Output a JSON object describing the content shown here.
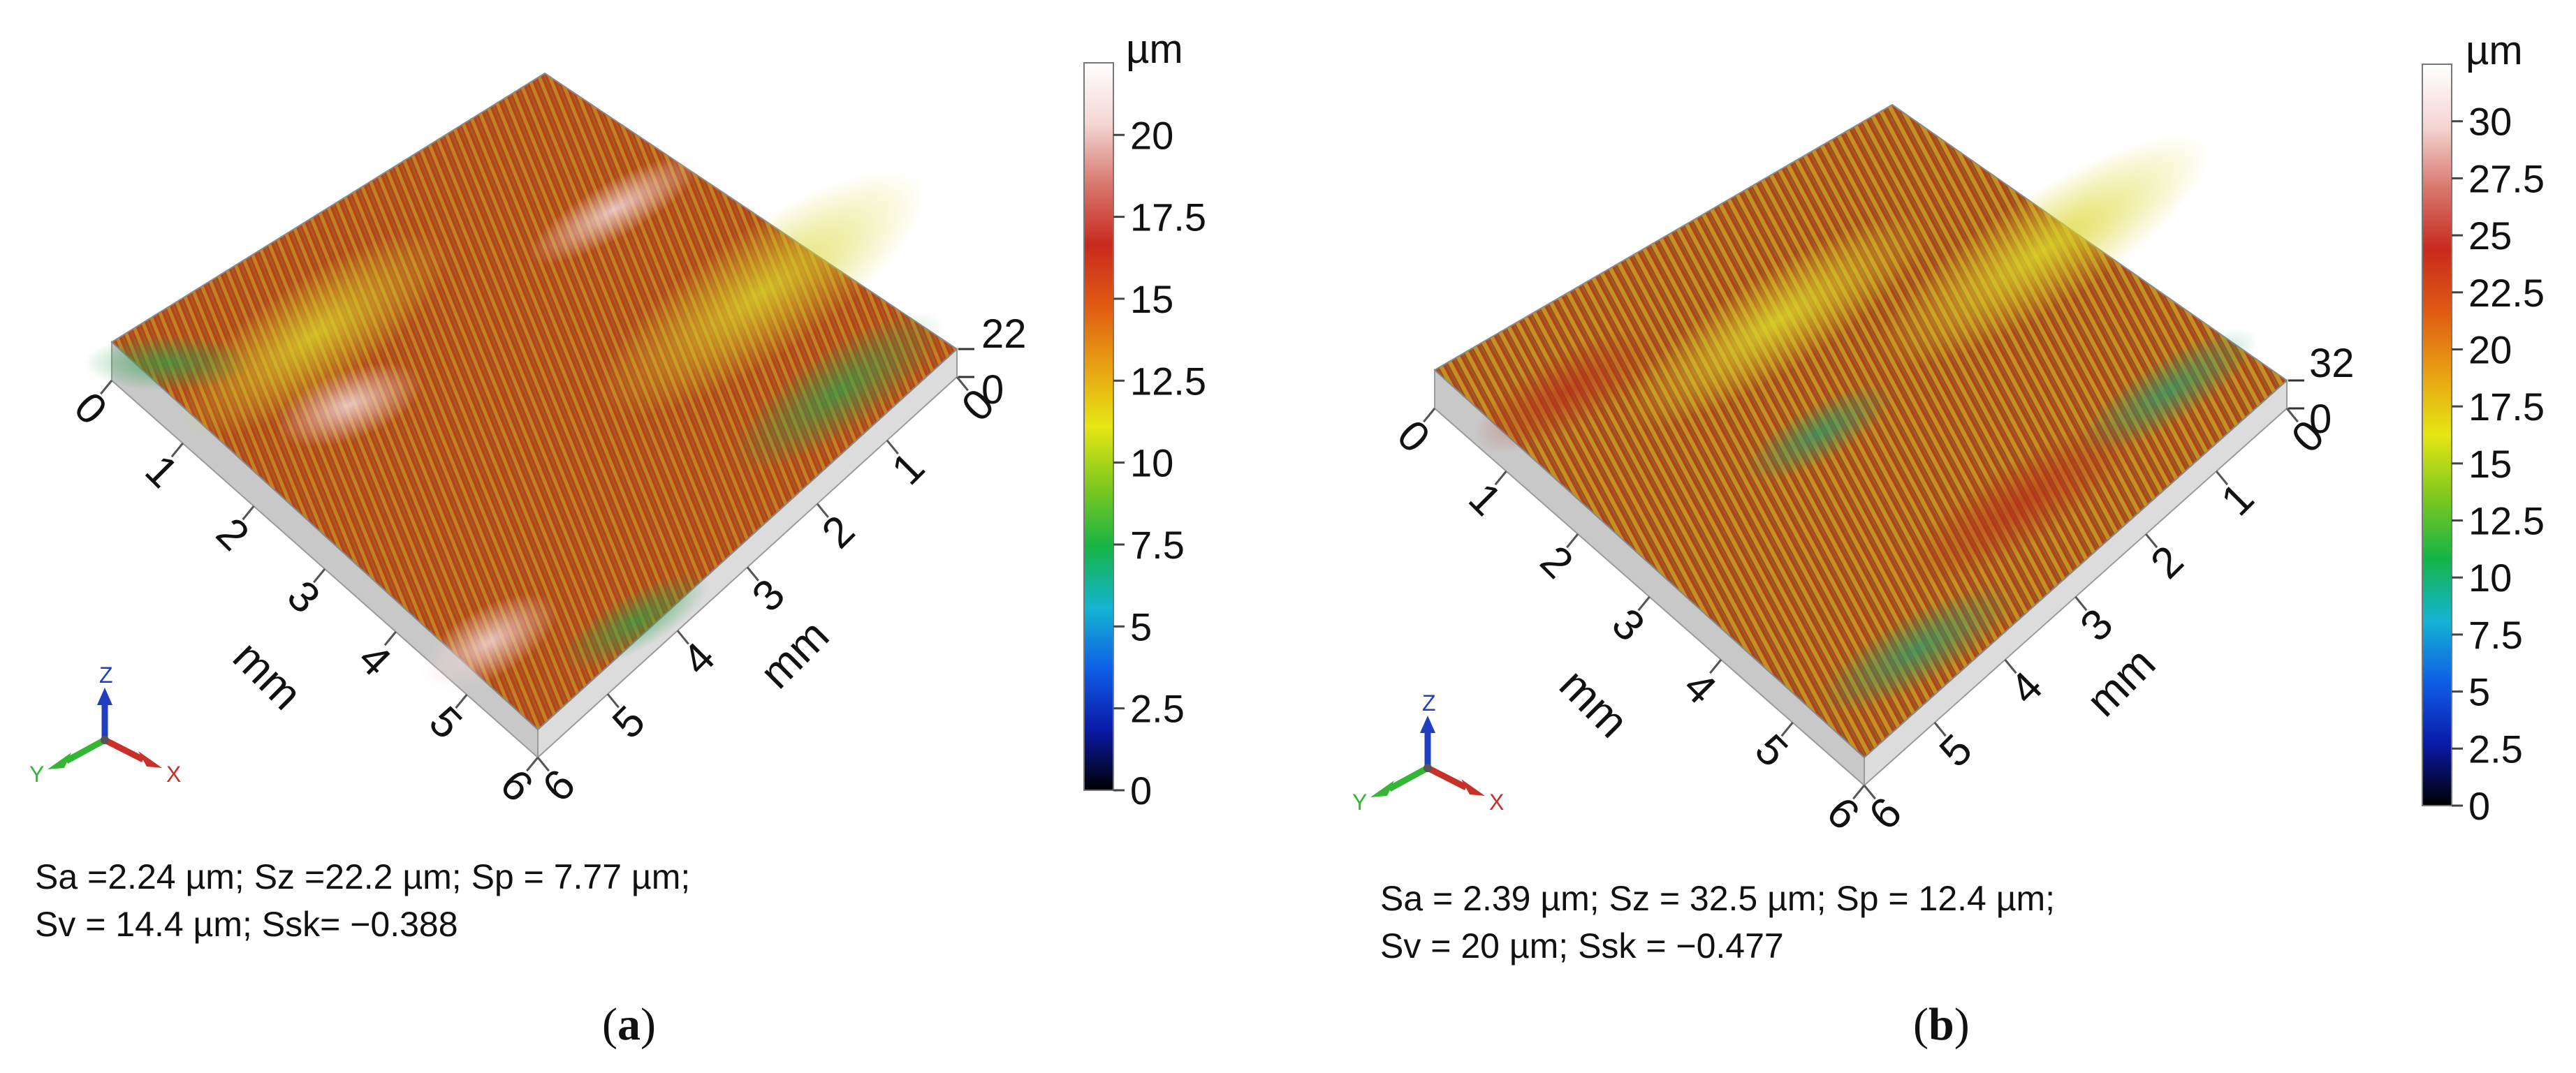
{
  "panels": [
    {
      "id": "a",
      "colorbar": {
        "unit": "µm",
        "ticks": [
          "0",
          "2.5",
          "5",
          "7.5",
          "10",
          "12.5",
          "15",
          "17.5",
          "20"
        ],
        "max_value": 22.2
      },
      "z_scale": {
        "top": "22",
        "bottom": "0"
      },
      "x_axis": {
        "label": "mm",
        "ticks": [
          "0",
          "1",
          "2",
          "3",
          "4",
          "5",
          "6"
        ]
      },
      "y_axis": {
        "label": "mm",
        "ticks": [
          "0",
          "1",
          "2",
          "3",
          "4",
          "5",
          "6"
        ]
      },
      "triad": {
        "z": "Z",
        "y": "Y",
        "x": "X"
      },
      "stats_line1": "Sa =2.24 µm; Sz =22.2 µm; Sp = 7.77 µm;",
      "stats_line2": "Sv = 14.4 µm; Ssk= −0.388",
      "caption_letter": "a"
    },
    {
      "id": "b",
      "colorbar": {
        "unit": "µm",
        "ticks": [
          "0",
          "2.5",
          "5",
          "7.5",
          "10",
          "12.5",
          "15",
          "17.5",
          "20",
          "22.5",
          "25",
          "27.5",
          "30"
        ],
        "max_value": 32.5
      },
      "z_scale": {
        "top": "32",
        "bottom": "0"
      },
      "x_axis": {
        "label": "mm",
        "ticks": [
          "0",
          "1",
          "2",
          "3",
          "4",
          "5",
          "6"
        ]
      },
      "y_axis": {
        "label": "mm",
        "ticks": [
          "0",
          "1",
          "2",
          "3",
          "4",
          "5",
          "6"
        ]
      },
      "triad": {
        "z": "Z",
        "y": "Y",
        "x": "X"
      },
      "stats_line1": "Sa = 2.39 µm; Sz = 32.5 µm; Sp = 12.4 µm;",
      "stats_line2": "Sv = 20 µm; Ssk = −0.477",
      "caption_letter": "b"
    }
  ],
  "colors": {
    "colormap": [
      "#000000",
      "#0a1aa8",
      "#0f5ee6",
      "#14b4d2",
      "#16b446",
      "#7ec81e",
      "#e6e614",
      "#e8a014",
      "#e05a14",
      "#c82a1e",
      "#d8786e",
      "#f4d6d4",
      "#ffffff"
    ],
    "surface_main": "#b33a1a",
    "surface_alt": "#c9c12a",
    "surface_green": "#3f9a2a",
    "axis_z": "#1f3fbf",
    "axis_y": "#35b535",
    "axis_x": "#c8302a"
  }
}
